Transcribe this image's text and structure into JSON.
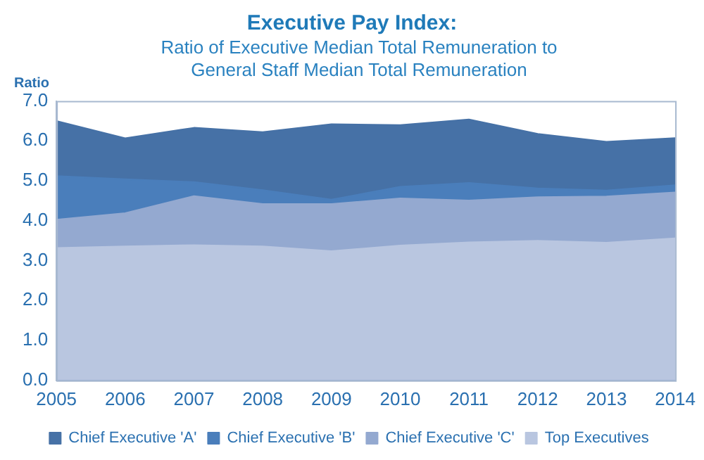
{
  "chart_data": {
    "type": "area",
    "title": "Executive Pay Index:",
    "subtitle": "Ratio of Executive Median Total Remuneration to General Staff Median Total Remuneration",
    "ylabel": "Ratio",
    "categories": [
      "2005",
      "2006",
      "2007",
      "2008",
      "2009",
      "2010",
      "2011",
      "2012",
      "2013",
      "2014"
    ],
    "series": [
      {
        "name": "Chief Executive 'A'",
        "color": "#4671a6",
        "values": [
          6.5,
          6.07,
          6.33,
          6.22,
          6.42,
          6.4,
          6.54,
          6.18,
          5.98,
          6.07
        ]
      },
      {
        "name": "Chief Executive 'B'",
        "color": "#4a7ebb",
        "values": [
          5.12,
          5.04,
          4.97,
          4.77,
          4.53,
          4.85,
          4.95,
          4.81,
          4.76,
          4.89
        ]
      },
      {
        "name": "Chief Executive 'C'",
        "color": "#94a9d0",
        "values": [
          4.03,
          4.19,
          4.62,
          4.42,
          4.42,
          4.56,
          4.51,
          4.59,
          4.61,
          4.71
        ]
      },
      {
        "name": "Top Executives",
        "color": "#b9c6e0",
        "values": [
          3.32,
          3.36,
          3.39,
          3.36,
          3.24,
          3.38,
          3.46,
          3.5,
          3.45,
          3.56
        ]
      }
    ],
    "ylim": [
      0,
      7
    ],
    "yticks": [
      {
        "value": 0,
        "label": "0.0"
      },
      {
        "value": 1,
        "label": "1.0"
      },
      {
        "value": 2,
        "label": "2.0"
      },
      {
        "value": 3,
        "label": "3.0"
      },
      {
        "value": 4,
        "label": "4.0"
      },
      {
        "value": 5,
        "label": "5.0"
      },
      {
        "value": 6,
        "label": "6.0"
      },
      {
        "value": 7,
        "label": "7.0"
      }
    ],
    "grid": false,
    "legend": "bottom"
  }
}
